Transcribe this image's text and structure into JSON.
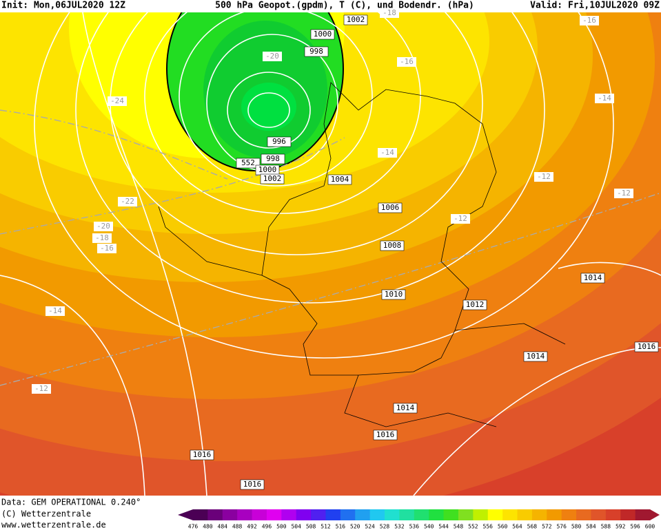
{
  "header": {
    "init": "Init: Mon,06JUL2020 12Z",
    "title": "500 hPa Geopot.(gpdm), T (C), und Bodendr. (hPa)",
    "valid": "Valid: Fri,10JUL2020 09Z"
  },
  "footer": {
    "data": "Data: GEM OPERATIONAL 0.240°",
    "copyright": "(C) Wetterzentrale",
    "url": "www.wetterzentrale.de"
  },
  "isobar_labels": [
    1002,
    1000,
    998,
    996,
    998,
    552,
    1000,
    1002,
    1004,
    1006,
    1008,
    1010,
    1012,
    1014,
    1016,
    1014,
    1014,
    1016,
    1016,
    1016
  ],
  "temperature_labels": [
    -18,
    -16,
    -20,
    -16,
    -24,
    -14,
    -14,
    -12,
    -12,
    -22,
    -12,
    -20,
    -18,
    -16,
    -14,
    -12
  ],
  "colorbar": {
    "ticks": [
      476,
      480,
      484,
      488,
      492,
      496,
      500,
      504,
      508,
      512,
      516,
      520,
      524,
      528,
      532,
      536,
      540,
      544,
      548,
      552,
      556,
      560,
      564,
      568,
      572,
      576,
      580,
      584,
      588,
      592,
      596,
      600
    ],
    "colors": [
      "#4b0055",
      "#6a007a",
      "#8a00a0",
      "#a800c0",
      "#c800d8",
      "#e000f0",
      "#b000f0",
      "#8000f0",
      "#5020f0",
      "#2040f0",
      "#2070f0",
      "#20a0f0",
      "#20c8f0",
      "#20e0d0",
      "#20e0a0",
      "#20e070",
      "#20e040",
      "#40e020",
      "#80e020",
      "#c0f000",
      "#ffff00",
      "#fde400",
      "#f9cc00",
      "#f5b400",
      "#f29a00",
      "#ef8010",
      "#e86a20",
      "#e0552a",
      "#d8402a",
      "#c02828",
      "#a01830"
    ]
  }
}
